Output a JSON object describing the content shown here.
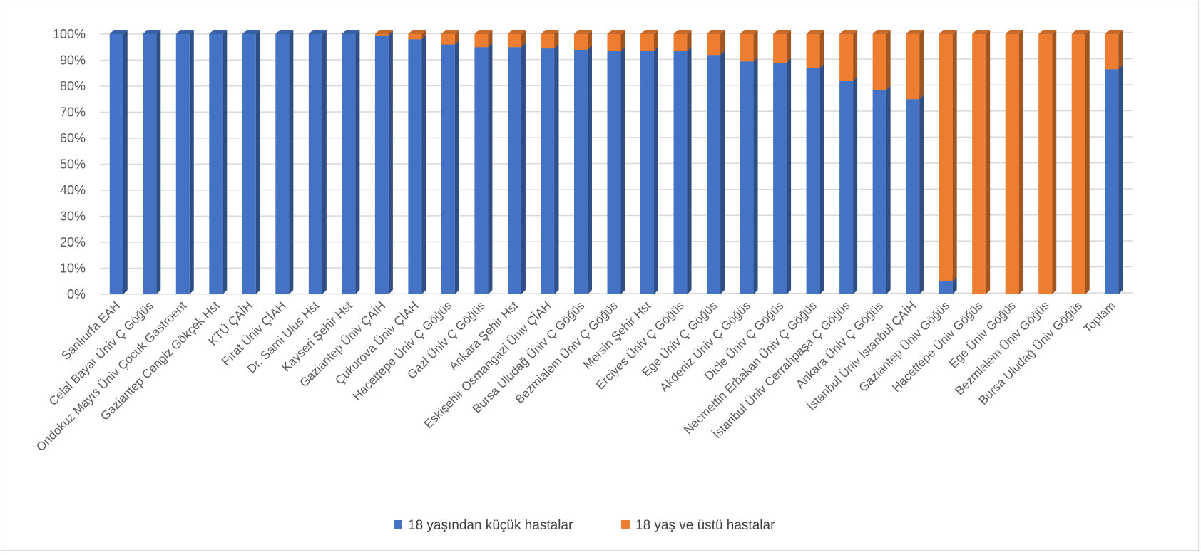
{
  "chart_data": {
    "type": "bar",
    "stacked": "percent",
    "title": "",
    "xlabel": "",
    "ylabel": "",
    "ylim": [
      0,
      100
    ],
    "yticks": [
      "0%",
      "10%",
      "20%",
      "30%",
      "40%",
      "50%",
      "60%",
      "70%",
      "80%",
      "90%",
      "100%"
    ],
    "grid": true,
    "legend_position": "bottom",
    "categories": [
      "Şanlıurfa EAH",
      "Celal Bayar Üniv Ç Göğüs",
      "Ondokuz Mayıs Üniv Çocuk Gastroent",
      "Gaziantep Cengiz Gökçek Hst",
      "KTÜ ÇAİH",
      "Fırat Üniv ÇİAH",
      "Dr. Sami Ulus Hst",
      "Kayseri Şehir Hst",
      "Gaziantep Üniv ÇAİH",
      "Çukurova Üniv ÇİAH",
      "Hacettepe Üniv Ç Göğüs",
      "Gazi Üniv Ç Göğüs",
      "Ankara Şehir Hst",
      "Eskişehir Osmangazi Üniv ÇİAH",
      "Bursa Uludağ Üniv Ç Göğüs",
      "Bezmialem Üniv Ç Göğüs",
      "Mersin Şehir Hst",
      "Erciyes Üniv Ç Göğüs",
      "Ege Üniv Ç Göğüs",
      "Akdeniz Üniv Ç Göğüs",
      "Dicle Üniv Ç Göğüs",
      "Necmettin Erbakan Üniv Ç Göğüs",
      "İstanbul Üniv Cerrahpaşa Ç Göğüs",
      "Ankara Üniv Ç Göğüs",
      "İstanbul Üniv İstanbul ÇAİH",
      "Gaziantep Üniv Göğüs",
      "Hacettepe Üniv Göğüs",
      "Ege Üniv Göğüs",
      "Bezmialem Üniv Göğüs",
      "Bursa Uludağ Üniv Göğüs",
      "Toplam"
    ],
    "series": [
      {
        "name": "18 yaşından küçük hastalar",
        "color": "#4472C4",
        "values": [
          100,
          100,
          100,
          100,
          100,
          100,
          100,
          100,
          99.5,
          98,
          96,
          95,
          95,
          94.5,
          94,
          93.5,
          93.5,
          93.5,
          92,
          89.5,
          89,
          87,
          82,
          78.5,
          75,
          5,
          0,
          0,
          0,
          0,
          86.5
        ]
      },
      {
        "name": "18 yaş ve üstü hastalar",
        "color": "#ED7D31",
        "values": [
          0,
          0,
          0,
          0,
          0,
          0,
          0,
          0,
          0.5,
          2,
          4,
          5,
          5,
          5.5,
          6,
          6.5,
          6.5,
          6.5,
          8,
          10.5,
          11,
          13,
          18,
          21.5,
          25,
          95,
          100,
          100,
          100,
          100,
          13.5
        ]
      }
    ]
  }
}
